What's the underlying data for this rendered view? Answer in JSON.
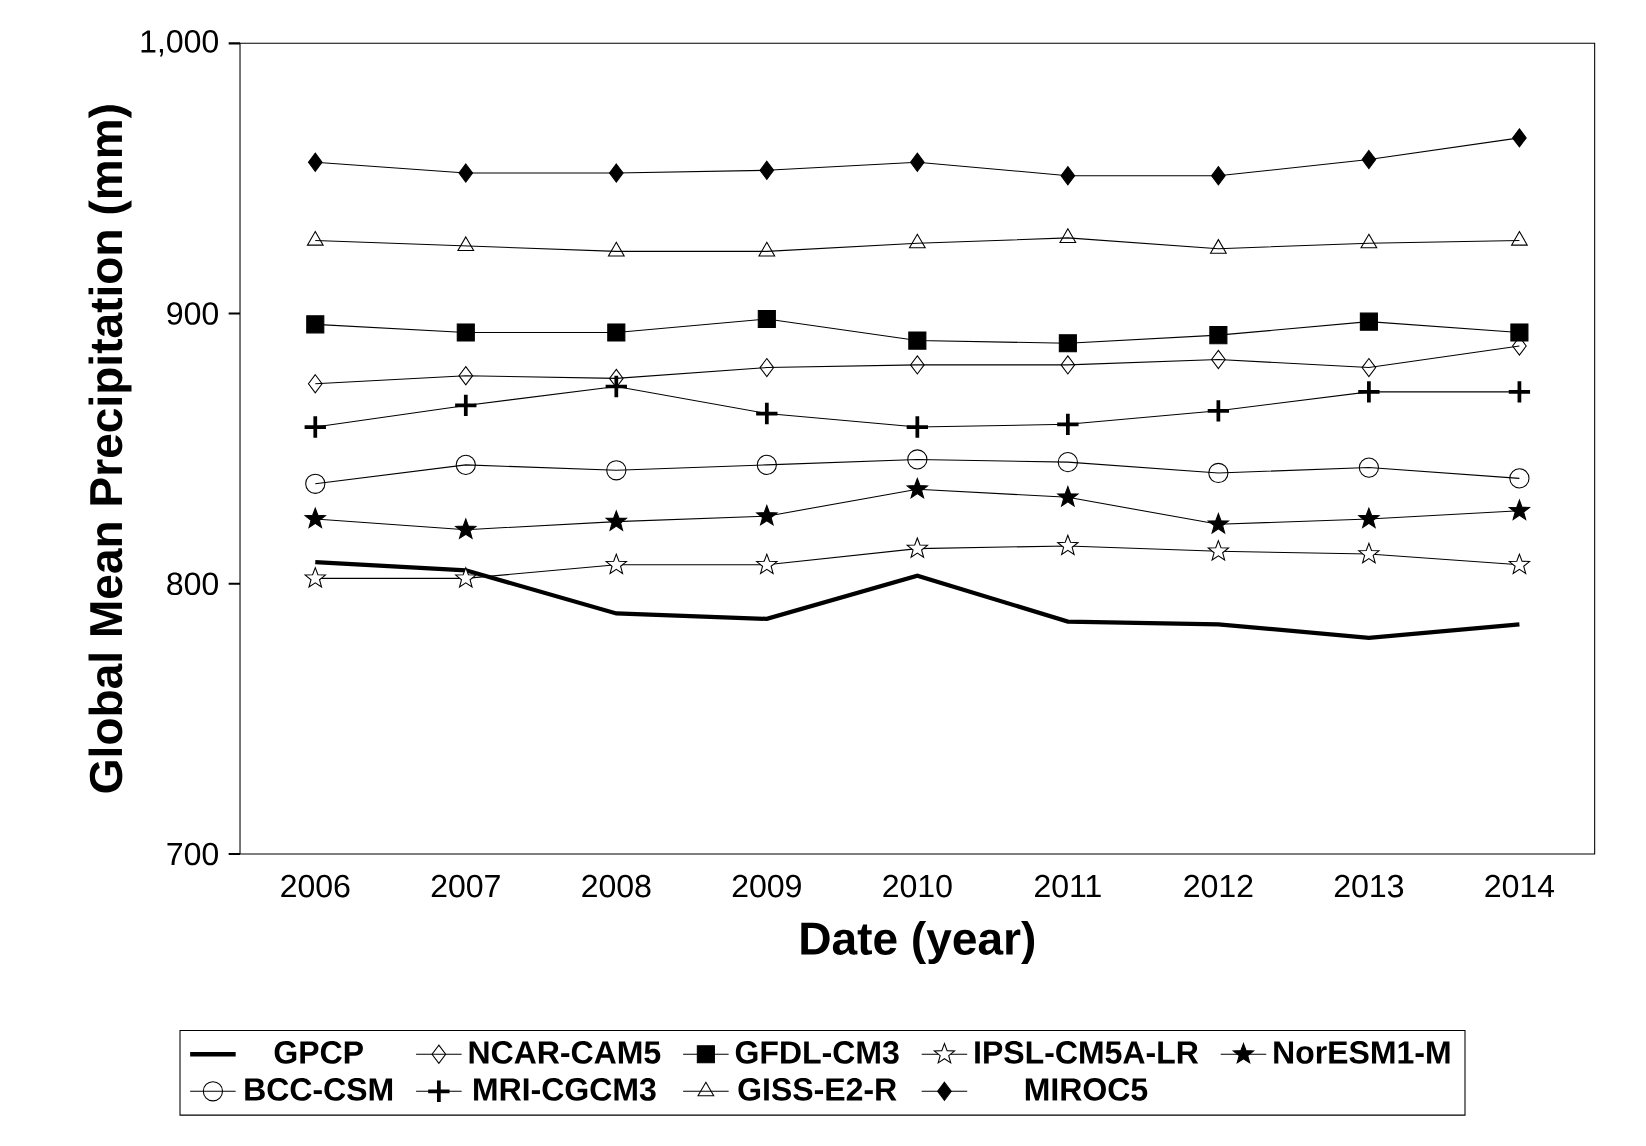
{
  "chart_data": {
    "type": "line",
    "xlabel": "Date (year)",
    "ylabel": "Global Mean Precipitation (mm)",
    "x": [
      2006,
      2007,
      2008,
      2009,
      2010,
      2011,
      2012,
      2013,
      2014
    ],
    "xlim": [
      2005.5,
      2014.5
    ],
    "xticks": [
      2006,
      2007,
      2008,
      2009,
      2010,
      2011,
      2012,
      2013,
      2014
    ],
    "ylim": [
      700,
      1000
    ],
    "yticks": [
      700,
      800,
      900,
      {
        "value": 1000,
        "label": "1,000"
      }
    ],
    "grid": false,
    "legend": "bottom",
    "series": [
      {
        "name": "GPCP",
        "color": "#000000",
        "marker": "none",
        "values": [
          808,
          805,
          789,
          787,
          803,
          786,
          785,
          780,
          785
        ]
      },
      {
        "name": "NCAR-CAM5",
        "color": "#000000",
        "marker": "diamond",
        "values": [
          874,
          877,
          876,
          880,
          881,
          881,
          883,
          880,
          888
        ]
      },
      {
        "name": "GFDL-CM3",
        "color": "#000000",
        "marker": "square",
        "values": [
          896,
          893,
          893,
          898,
          890,
          889,
          892,
          897,
          893
        ]
      },
      {
        "name": "IPSL-CM5A-LR",
        "color": "#000000",
        "marker": "star",
        "values": [
          802,
          802,
          807,
          807,
          813,
          814,
          812,
          811,
          807
        ]
      },
      {
        "name": "NorESM1-M",
        "color": "#000000",
        "marker": "star",
        "values": [
          824,
          820,
          823,
          825,
          835,
          832,
          822,
          824,
          827
        ]
      },
      {
        "name": "BCC-CSM",
        "color": "#000000",
        "marker": "circle",
        "values": [
          837,
          844,
          842,
          844,
          846,
          845,
          841,
          843,
          839
        ]
      },
      {
        "name": "MRI-CGCM3",
        "color": "#000000",
        "marker": "cross",
        "values": [
          858,
          866,
          873,
          863,
          858,
          859,
          864,
          871,
          871
        ]
      },
      {
        "name": "GISS-E2-R",
        "color": "#000000",
        "marker": "triangle",
        "values": [
          927,
          925,
          923,
          923,
          926,
          928,
          924,
          926,
          927
        ]
      },
      {
        "name": "MIROC5",
        "color": "#000000",
        "marker": "diamond",
        "values": [
          956,
          952,
          952,
          953,
          956,
          951,
          951,
          957,
          965
        ]
      }
    ]
  }
}
